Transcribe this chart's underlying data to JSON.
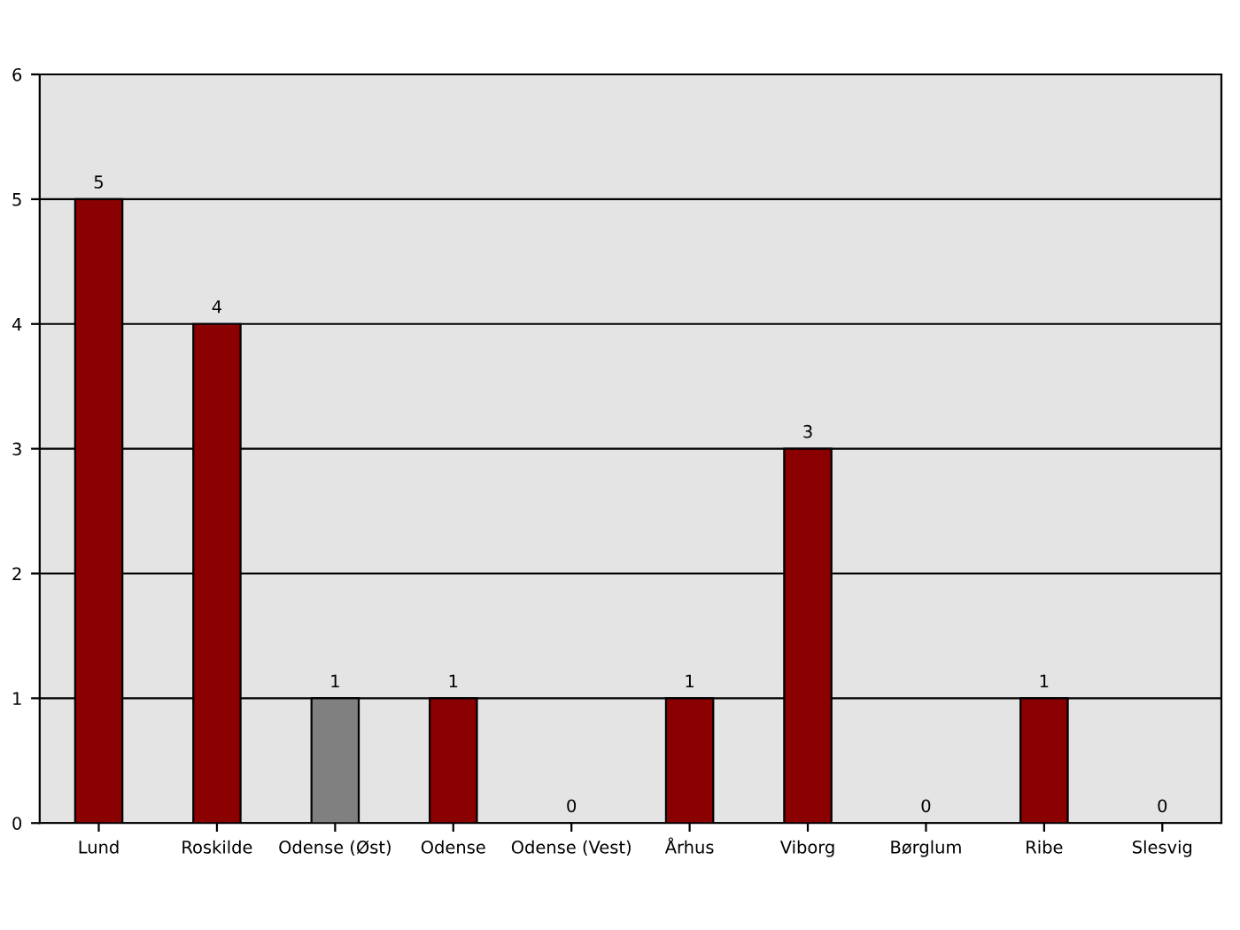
{
  "chart_data": {
    "type": "bar",
    "categories": [
      "Lund",
      "Roskilde",
      "Odense (Øst)",
      "Odense",
      "Odense (Vest)",
      "Århus",
      "Viborg",
      "Børglum",
      "Ribe",
      "Slesvig"
    ],
    "values": [
      5,
      4,
      1,
      1,
      0,
      1,
      3,
      0,
      1,
      0
    ],
    "colors": [
      "#8b0000",
      "#8b0000",
      "#808080",
      "#8b0000",
      "#8b0000",
      "#8b0000",
      "#8b0000",
      "#8b0000",
      "#8b0000",
      "#8b0000"
    ],
    "ylim": [
      0,
      6
    ],
    "yticks": [
      0,
      1,
      2,
      3,
      4,
      5,
      6
    ],
    "grid": "y",
    "data_labels": true,
    "legend": false
  }
}
